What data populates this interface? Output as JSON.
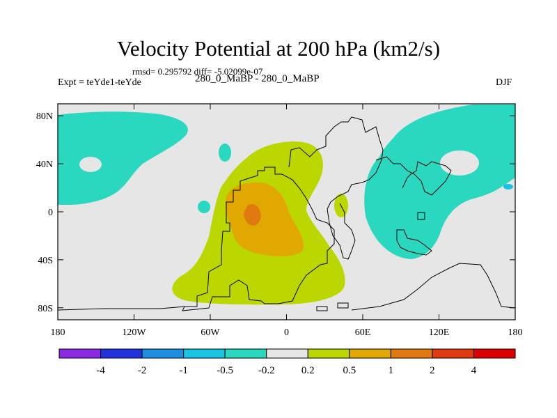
{
  "chart_data": {
    "type": "filled-contour map",
    "title": "Velocity Potential at 200 hPa (km2/s)",
    "stats_line": "rmsd= 0.295792 diff= -5.02099e-07",
    "left_label": "Expt = teYde1-teYde",
    "center_label": "280_0_MaBP - 280_0_MaBP",
    "right_label": "DJF",
    "x_axis": {
      "range": [
        -180,
        180
      ],
      "ticks": [
        -180,
        -120,
        -60,
        0,
        60,
        120,
        180
      ],
      "tick_labels": [
        "180",
        "120W",
        "60W",
        "0",
        "60E",
        "120E",
        "180"
      ]
    },
    "y_axis": {
      "range": [
        -90,
        90
      ],
      "ticks": [
        80,
        40,
        0,
        -40,
        -80
      ],
      "tick_labels": [
        "80N",
        "40N",
        "0",
        "40S",
        "80S"
      ]
    },
    "colorbar": {
      "labels": [
        "-4",
        "-2",
        "-1",
        "-0.5",
        "-0.2",
        "0.2",
        "0.5",
        "1",
        "2",
        "4"
      ],
      "colors": [
        "#8a2be2",
        "#2233dd",
        "#1e8fe0",
        "#19c3e3",
        "#2ad8bf",
        "#e6e6e6",
        "#bcd600",
        "#e0a800",
        "#e07a10",
        "#e03a10",
        "#dd0000"
      ]
    },
    "regions": [
      {
        "name": "negative-northwest",
        "level_range": [
          -0.5,
          -0.2
        ],
        "approx_center": [
          -150,
          55
        ]
      },
      {
        "name": "negative-east",
        "level_range": [
          -0.5,
          -0.2
        ],
        "approx_center": [
          115,
          20
        ]
      },
      {
        "name": "positive-atlantic",
        "level_range": [
          0.2,
          0.5
        ],
        "approx_center": [
          -20,
          -20
        ]
      },
      {
        "name": "positive-core",
        "level_range": [
          0.5,
          1
        ],
        "approx_center": [
          -25,
          -10
        ]
      },
      {
        "name": "positive-max",
        "level_range": [
          1,
          2
        ],
        "approx_center": [
          -28,
          -5
        ]
      }
    ]
  }
}
